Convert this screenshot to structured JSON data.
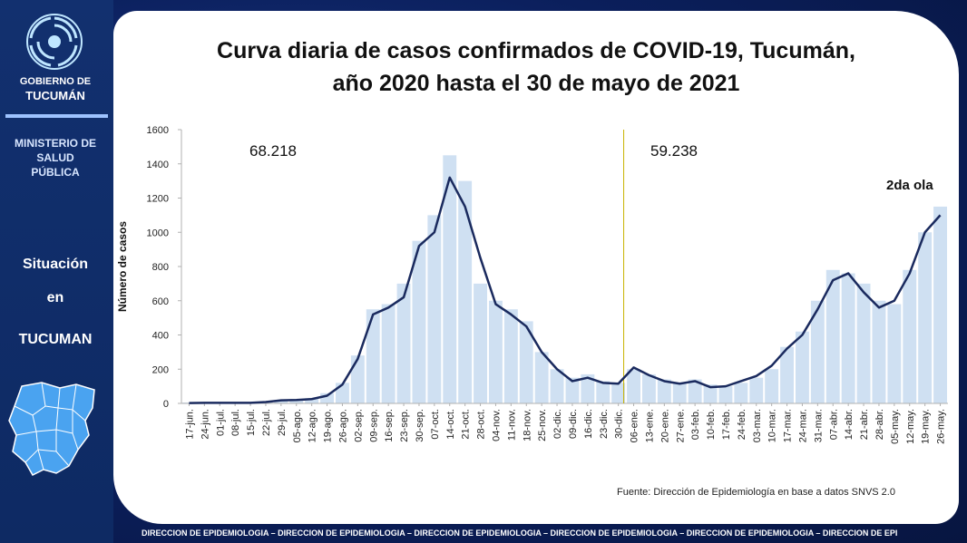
{
  "sidebar": {
    "gov_line1": "GOBIERNO DE",
    "gov_line2": "TUCUMÁN",
    "ministry": [
      "MINISTERIO DE",
      "SALUD",
      "PÚBLICA"
    ],
    "situation": [
      "Situación",
      "en",
      "TUCUMAN"
    ]
  },
  "title_lines": [
    "Curva diaria de casos confirmados de COVID-19, Tucumán,",
    "año 2020 hasta el 30 de mayo de 2021"
  ],
  "source": "Fuente: Dirección de Epidemiología en base a datos SNVS 2.0",
  "footer": "DIRECCION DE EPIDEMIOLOGIA – DIRECCION DE EPIDEMIOLOGIA – DIRECCION DE EPIDEMIOLOGIA – DIRECCION DE EPIDEMIOLOGIA – DIRECCION DE EPIDEMIOLOGIA – DIRECCION DE EPI",
  "colors": {
    "bars": "#cfe0f2",
    "line": "#1a2a5e",
    "divider": "#c8b400",
    "sidebar": "#12306f",
    "map": "#4aa3f0"
  },
  "icons": [
    "gobierno-logo-icon",
    "tucuman-map-icon"
  ],
  "chart_data": {
    "type": "bar",
    "ylabel": "Número de casos",
    "xlabel": "",
    "ylim": [
      0,
      1600
    ],
    "yticks": [
      0,
      200,
      400,
      600,
      800,
      1000,
      1200,
      1400,
      1600
    ],
    "grid": false,
    "categories": [
      "17-jun.",
      "24-jun.",
      "01-jul.",
      "08-jul.",
      "15-jul.",
      "22-jul.",
      "29-jul.",
      "05-ago.",
      "12-ago.",
      "19-ago.",
      "26-ago.",
      "02-sep.",
      "09-sep.",
      "16-sep.",
      "23-sep.",
      "30-sep.",
      "07-oct.",
      "14-oct.",
      "21-oct.",
      "28-oct.",
      "04-nov.",
      "11-nov.",
      "18-nov.",
      "25-nov.",
      "02-dic.",
      "09-dic.",
      "16-dic.",
      "23-dic.",
      "30-dic.",
      "06-ene.",
      "13-ene.",
      "20-ene.",
      "27-ene.",
      "03-feb.",
      "10-feb.",
      "17-feb.",
      "24-feb.",
      "03-mar.",
      "10-mar.",
      "17-mar.",
      "24-mar.",
      "31-mar.",
      "07-abr.",
      "14-abr.",
      "21-abr.",
      "28-abr.",
      "05-may.",
      "12-may.",
      "19-may.",
      "26-may."
    ],
    "daily_cases_weekly_approx": [
      5,
      5,
      5,
      5,
      5,
      10,
      20,
      25,
      30,
      60,
      120,
      280,
      550,
      580,
      700,
      950,
      1100,
      1450,
      1300,
      700,
      600,
      550,
      480,
      300,
      200,
      150,
      170,
      130,
      120,
      200,
      170,
      140,
      120,
      140,
      110,
      100,
      120,
      150,
      200,
      330,
      420,
      600,
      780,
      760,
      700,
      600,
      580,
      780,
      1000,
      1150
    ],
    "moving_average": [
      2,
      3,
      3,
      3,
      3,
      8,
      18,
      20,
      25,
      45,
      110,
      260,
      520,
      560,
      620,
      920,
      1000,
      1320,
      1150,
      850,
      580,
      520,
      450,
      300,
      200,
      130,
      150,
      120,
      115,
      210,
      165,
      130,
      115,
      130,
      95,
      100,
      130,
      160,
      220,
      320,
      400,
      550,
      720,
      760,
      650,
      560,
      600,
      760,
      1000,
      1100
    ],
    "annotations": [
      {
        "text": "68.218",
        "at": "2020"
      },
      {
        "text": "59.238",
        "at": "2021"
      },
      {
        "text": "2da ola",
        "at": "mayo 2021"
      }
    ],
    "divider_at": "31-dic. 2020"
  }
}
